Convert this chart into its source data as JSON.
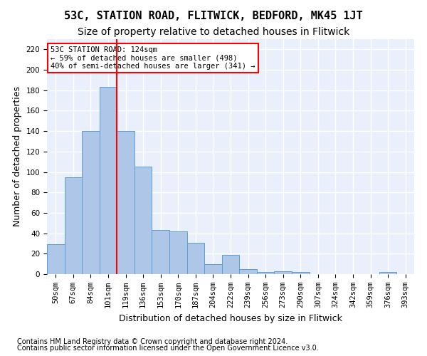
{
  "title": "53C, STATION ROAD, FLITWICK, BEDFORD, MK45 1JT",
  "subtitle": "Size of property relative to detached houses in Flitwick",
  "xlabel": "Distribution of detached houses by size in Flitwick",
  "ylabel": "Number of detached properties",
  "footnote1": "Contains HM Land Registry data © Crown copyright and database right 2024.",
  "footnote2": "Contains public sector information licensed under the Open Government Licence v3.0.",
  "bins": [
    "50sqm",
    "67sqm",
    "84sqm",
    "101sqm",
    "119sqm",
    "136sqm",
    "153sqm",
    "170sqm",
    "187sqm",
    "204sqm",
    "222sqm",
    "239sqm",
    "256sqm",
    "273sqm",
    "290sqm",
    "307sqm",
    "324sqm",
    "342sqm",
    "359sqm",
    "376sqm",
    "393sqm"
  ],
  "bar_values": [
    29,
    95,
    140,
    183,
    140,
    105,
    43,
    42,
    31,
    10,
    19,
    5,
    2,
    3,
    2,
    0,
    0,
    0,
    0,
    2,
    0
  ],
  "bar_color": "#aec6e8",
  "bar_edge_color": "#5a9fd4",
  "vline_pos": 3.5,
  "vline_color": "red",
  "annotation_text": "53C STATION ROAD: 124sqm\n← 59% of detached houses are smaller (498)\n40% of semi-detached houses are larger (341) →",
  "annotation_box_color": "white",
  "annotation_box_edge": "red",
  "ylim": [
    0,
    230
  ],
  "yticks": [
    0,
    20,
    40,
    60,
    80,
    100,
    120,
    140,
    160,
    180,
    200,
    220
  ],
  "background_color": "#eaf0fb",
  "grid_color": "white",
  "title_fontsize": 11,
  "subtitle_fontsize": 10,
  "axis_label_fontsize": 9,
  "tick_fontsize": 7.5,
  "footnote_fontsize": 7
}
